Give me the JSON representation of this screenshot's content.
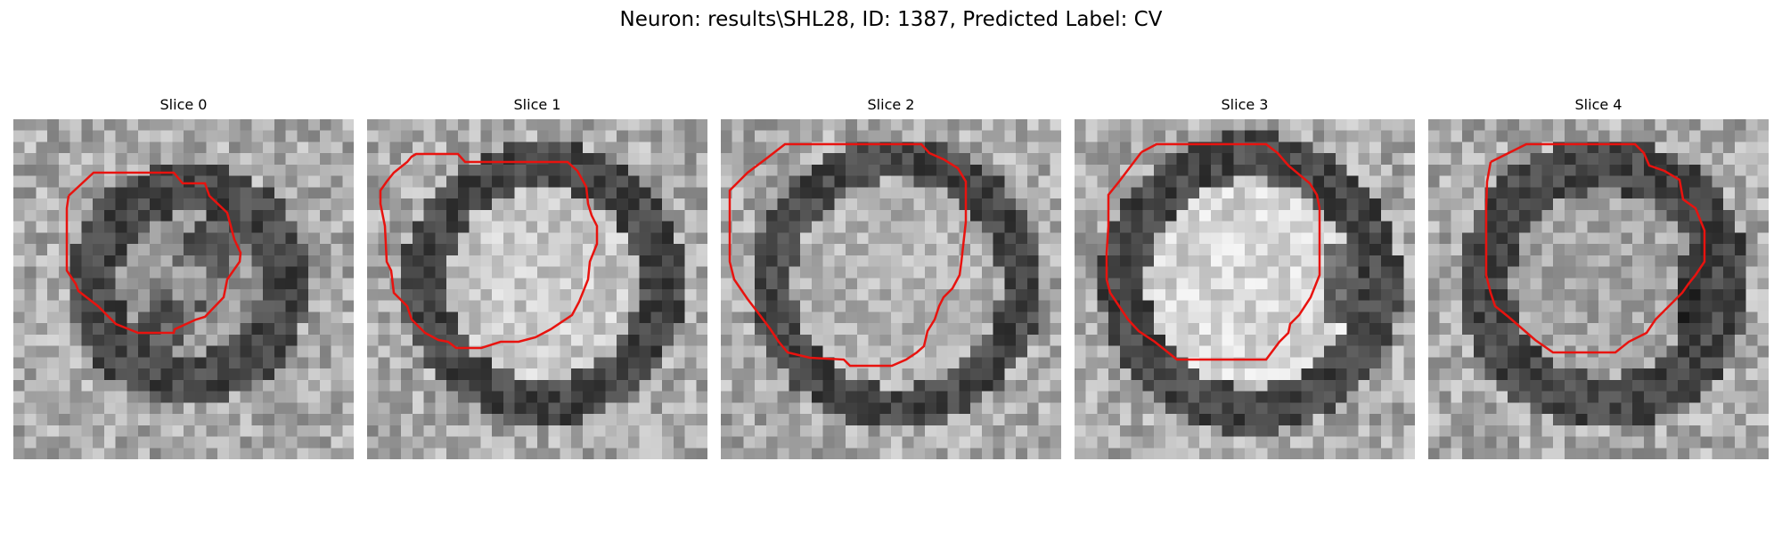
{
  "figure": {
    "title": "Neuron: results\\SHL28, ID: 1387, Predicted Label: CV"
  },
  "colors": {
    "contour": "#e8130f",
    "background": "#ffffff"
  },
  "slices": [
    {
      "label": "Slice 0"
    },
    {
      "label": "Slice 1"
    },
    {
      "label": "Slice 2"
    },
    {
      "label": "Slice 3"
    },
    {
      "label": "Slice 4"
    }
  ]
}
